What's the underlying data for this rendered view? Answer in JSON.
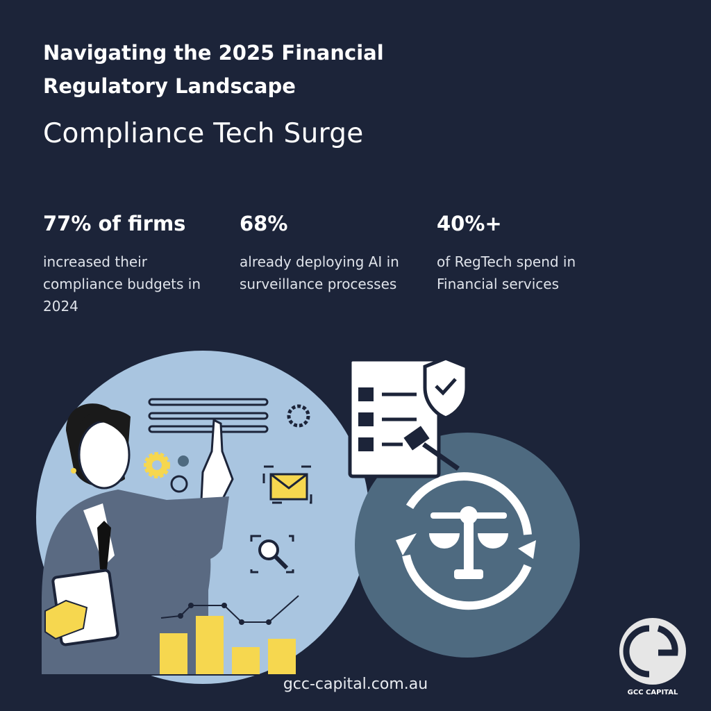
{
  "header": {
    "title_lines": [
      "Navigating the 2025 Financial",
      "Regulatory Landscape"
    ],
    "subtitle": "Compliance Tech Surge"
  },
  "stats": [
    {
      "headline": "77% of firms",
      "lines": [
        "increased their",
        "compliance budgets in",
        "2024"
      ]
    },
    {
      "headline": "68%",
      "lines": [
        "already deploying AI in",
        "surveillance processes"
      ]
    },
    {
      "headline": "40%+",
      "lines": [
        "of RegTech spend in",
        "Financial services"
      ]
    }
  ],
  "footer": {
    "url": "gcc-capital.com.au",
    "logo_text": "GCC CAPITAL"
  }
}
